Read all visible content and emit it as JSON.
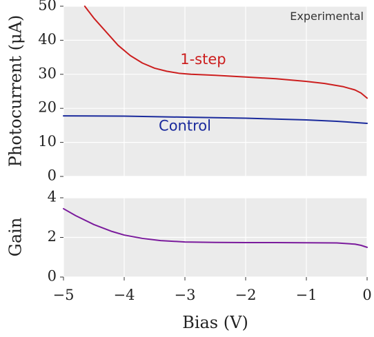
{
  "chart_data": [
    {
      "type": "line",
      "ylabel": "Photocurrent (μA)",
      "xlim": [
        -5,
        0
      ],
      "ylim": [
        0,
        50
      ],
      "x_ticks": [
        -5,
        -4,
        -3,
        -2,
        -1,
        0
      ],
      "y_ticks": [
        0,
        10,
        20,
        30,
        40,
        50
      ],
      "y_tick_labels": [
        "0",
        "10",
        "20",
        "30",
        "40",
        "50"
      ],
      "grid": true,
      "annotations": [
        {
          "text": "Experimental",
          "position": "top-right"
        },
        {
          "text": "1-step",
          "series": "1-step",
          "x": -2.7,
          "y": 33,
          "color": "#cc1e1e"
        },
        {
          "text": "Control",
          "series": "Control",
          "x": -3.0,
          "y": 13.5,
          "color": "#1a2a9c"
        }
      ],
      "series": [
        {
          "name": "1-step",
          "color": "#cc1e1e",
          "x": [
            -4.65,
            -4.5,
            -4.3,
            -4.1,
            -3.9,
            -3.7,
            -3.5,
            -3.3,
            -3.1,
            -2.9,
            -2.5,
            -2.0,
            -1.5,
            -1.0,
            -0.7,
            -0.4,
            -0.2,
            -0.1,
            0.0
          ],
          "y": [
            50,
            46.5,
            42.5,
            38.5,
            35.5,
            33.3,
            31.8,
            30.9,
            30.3,
            30.0,
            29.7,
            29.2,
            28.7,
            27.9,
            27.3,
            26.4,
            25.4,
            24.5,
            23.0
          ]
        },
        {
          "name": "Control",
          "color": "#1a2a9c",
          "x": [
            -5.0,
            -4.0,
            -3.0,
            -2.0,
            -1.0,
            -0.5,
            0.0
          ],
          "y": [
            17.8,
            17.7,
            17.4,
            17.1,
            16.6,
            16.2,
            15.6
          ]
        }
      ]
    },
    {
      "type": "line",
      "xlabel": "Bias (V)",
      "ylabel": "Gain",
      "xlim": [
        -5,
        0
      ],
      "ylim": [
        0,
        4
      ],
      "x_ticks": [
        -5,
        -4,
        -3,
        -2,
        -1,
        0
      ],
      "x_tick_labels": [
        "−5",
        "−4",
        "−3",
        "−2",
        "−1",
        "0"
      ],
      "y_ticks": [
        0,
        2,
        4
      ],
      "y_tick_labels": [
        "0",
        "2",
        "4"
      ],
      "grid": true,
      "series": [
        {
          "color": "#7a1a9c",
          "x": [
            -5.0,
            -4.8,
            -4.5,
            -4.2,
            -4.0,
            -3.7,
            -3.4,
            -3.0,
            -2.5,
            -2.0,
            -1.5,
            -1.0,
            -0.5,
            -0.2,
            -0.1,
            0.0
          ],
          "y": [
            3.45,
            3.1,
            2.65,
            2.3,
            2.12,
            1.95,
            1.84,
            1.77,
            1.75,
            1.74,
            1.74,
            1.73,
            1.72,
            1.66,
            1.6,
            1.5
          ]
        }
      ]
    }
  ]
}
